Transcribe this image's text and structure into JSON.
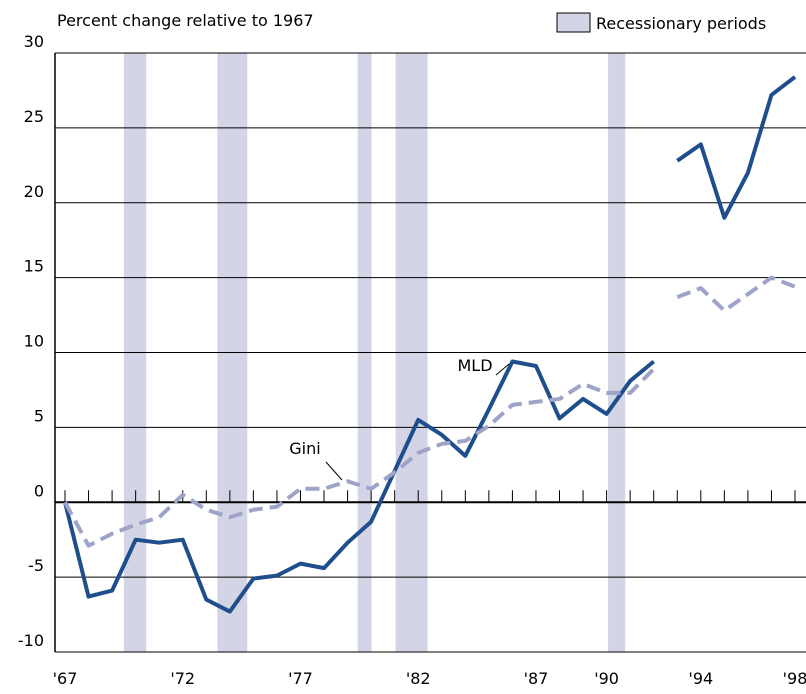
{
  "chart_data": {
    "type": "line",
    "title": "Percent change relative to 1967",
    "legend_label": "Recessionary periods",
    "recession_color": "#d3d5e6",
    "recessions": [
      [
        1969.5,
        1970.45
      ],
      [
        1973.47,
        1974.74
      ],
      [
        1979.43,
        1980.02
      ],
      [
        1981.04,
        1982.4
      ],
      [
        1990.06,
        1990.79
      ]
    ],
    "xlim": [
      1967,
      1998
    ],
    "xticks": [
      {
        "value": 1967,
        "label": "'67"
      },
      {
        "value": 1972,
        "label": "'72"
      },
      {
        "value": 1977,
        "label": "'77"
      },
      {
        "value": 1982,
        "label": "'82"
      },
      {
        "value": 1987,
        "label": "'87"
      },
      {
        "value": 1990,
        "label": "'90"
      },
      {
        "value": 1994,
        "label": "'94"
      },
      {
        "value": 1998,
        "label": "'98"
      }
    ],
    "ylim": [
      -10,
      30
    ],
    "yticks": [
      -10,
      -5,
      0,
      5,
      10,
      15,
      20,
      25,
      30
    ],
    "grid": true,
    "series": [
      {
        "name": "MLD",
        "color": "#1f4e8c",
        "dashed": false,
        "segments": [
          {
            "x": [
              1967,
              1968,
              1969,
              1970,
              1971,
              1972,
              1973,
              1974,
              1975,
              1976,
              1977,
              1978,
              1979,
              1980,
              1981,
              1982,
              1983,
              1984,
              1985,
              1986,
              1987,
              1988,
              1989,
              1990,
              1991,
              1992
            ],
            "values": [
              0,
              -6.3,
              -5.9,
              -2.5,
              -2.7,
              -2.5,
              -6.5,
              -7.3,
              -5.1,
              -4.9,
              -4.1,
              -4.4,
              -2.7,
              -1.3,
              2.1,
              5.5,
              4.5,
              3.1,
              6.2,
              9.4,
              9.1,
              5.6,
              6.9,
              5.9,
              8.1,
              9.4
            ]
          },
          {
            "x": [
              1993,
              1994,
              1995,
              1996,
              1997,
              1998
            ],
            "values": [
              22.8,
              23.9,
              19.0,
              22.0,
              27.2,
              28.4
            ]
          }
        ]
      },
      {
        "name": "Gini",
        "color": "#9ea3c8",
        "dashed": true,
        "segments": [
          {
            "x": [
              1967,
              1968,
              1969,
              1970,
              1971,
              1972,
              1973,
              1974,
              1975,
              1976,
              1977,
              1978,
              1979,
              1980,
              1981,
              1982,
              1983,
              1984,
              1985,
              1986,
              1987,
              1988,
              1989,
              1990,
              1991,
              1992
            ],
            "values": [
              0,
              -2.9,
              -2.1,
              -1.5,
              -1.0,
              0.5,
              -0.5,
              -1.0,
              -0.5,
              -0.3,
              0.9,
              0.9,
              1.4,
              0.9,
              2.0,
              3.3,
              3.9,
              4.1,
              5.1,
              6.5,
              6.7,
              6.9,
              7.9,
              7.3,
              7.3,
              8.9
            ]
          },
          {
            "x": [
              1993,
              1994,
              1995,
              1996,
              1997,
              1998
            ],
            "values": [
              13.7,
              14.3,
              12.8,
              13.9,
              15.0,
              14.4
            ]
          }
        ]
      }
    ]
  }
}
